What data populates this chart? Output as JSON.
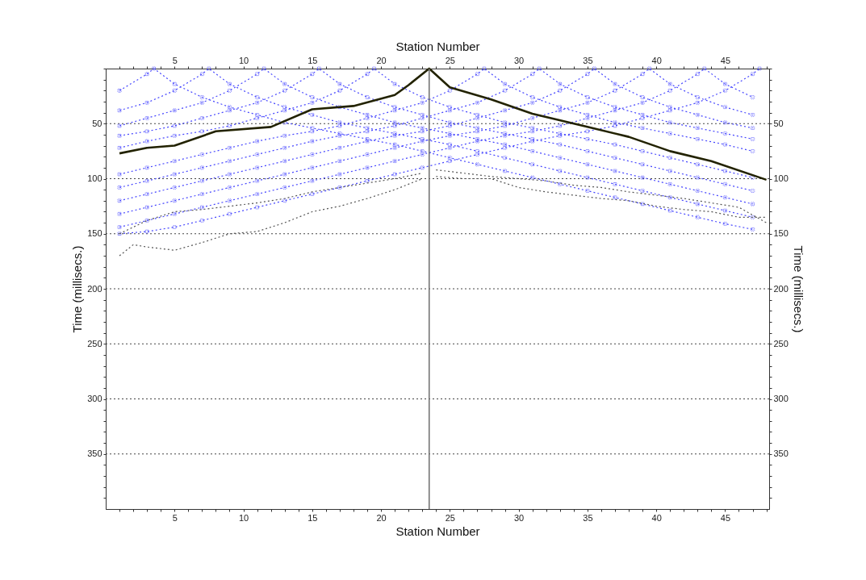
{
  "chart_data": {
    "type": "line",
    "xlabel": "Station Number",
    "x2label": "Station Number",
    "ylabel": "Time (millisecs.)",
    "y2label": "Time (millisecs.)",
    "xlim": [
      0,
      48.2
    ],
    "x2lim": [
      0,
      48.2
    ],
    "ylim": [
      400,
      0
    ],
    "y2lim": [
      400,
      0
    ],
    "xticks": [
      {
        "value": 1,
        "label": null
      },
      {
        "value": 2,
        "label": null
      },
      {
        "value": 3,
        "label": null
      },
      {
        "value": 4,
        "label": null
      },
      5,
      {
        "value": 6,
        "label": null
      },
      {
        "value": 7,
        "label": null
      },
      {
        "value": 8,
        "label": null
      },
      {
        "value": 9,
        "label": null
      },
      10,
      {
        "value": 11,
        "label": null
      },
      {
        "value": 12,
        "label": null
      },
      {
        "value": 13,
        "label": null
      },
      {
        "value": 14,
        "label": null
      },
      15,
      {
        "value": 16,
        "label": null
      },
      {
        "value": 17,
        "label": null
      },
      {
        "value": 18,
        "label": null
      },
      {
        "value": 19,
        "label": null
      },
      20,
      {
        "value": 21,
        "label": null
      },
      {
        "value": 22,
        "label": null
      },
      {
        "value": 23,
        "label": null
      },
      {
        "value": 24,
        "label": null
      },
      25,
      {
        "value": 26,
        "label": null
      },
      {
        "value": 27,
        "label": null
      },
      {
        "value": 28,
        "label": null
      },
      {
        "value": 29,
        "label": null
      },
      30,
      {
        "value": 31,
        "label": null
      },
      {
        "value": 32,
        "label": null
      },
      {
        "value": 33,
        "label": null
      },
      {
        "value": 34,
        "label": null
      },
      35,
      {
        "value": 36,
        "label": null
      },
      {
        "value": 37,
        "label": null
      },
      {
        "value": 38,
        "label": null
      },
      {
        "value": 39,
        "label": null
      },
      40,
      {
        "value": 41,
        "label": null
      },
      {
        "value": 42,
        "label": null
      },
      {
        "value": 43,
        "label": null
      },
      {
        "value": 44,
        "label": null
      },
      45,
      {
        "value": 46,
        "label": null
      },
      {
        "value": 47,
        "label": null
      },
      {
        "value": 48,
        "label": null
      }
    ],
    "x2ticks": [
      {
        "value": 1,
        "label": null
      },
      {
        "value": 2,
        "label": null
      },
      {
        "value": 3,
        "label": null
      },
      {
        "value": 4,
        "label": null
      },
      5,
      {
        "value": 6,
        "label": null
      },
      {
        "value": 7,
        "label": null
      },
      {
        "value": 8,
        "label": null
      },
      {
        "value": 9,
        "label": null
      },
      10,
      {
        "value": 11,
        "label": null
      },
      {
        "value": 12,
        "label": null
      },
      {
        "value": 13,
        "label": null
      },
      {
        "value": 14,
        "label": null
      },
      15,
      {
        "value": 16,
        "label": null
      },
      {
        "value": 17,
        "label": null
      },
      {
        "value": 18,
        "label": null
      },
      {
        "value": 19,
        "label": null
      },
      20,
      {
        "value": 21,
        "label": null
      },
      {
        "value": 22,
        "label": null
      },
      {
        "value": 23,
        "label": null
      },
      {
        "value": 24,
        "label": null
      },
      25,
      {
        "value": 26,
        "label": null
      },
      {
        "value": 27,
        "label": null
      },
      {
        "value": 28,
        "label": null
      },
      {
        "value": 29,
        "label": null
      },
      30,
      {
        "value": 31,
        "label": null
      },
      {
        "value": 32,
        "label": null
      },
      {
        "value": 33,
        "label": null
      },
      {
        "value": 34,
        "label": null
      },
      35,
      {
        "value": 36,
        "label": null
      },
      {
        "value": 37,
        "label": null
      },
      {
        "value": 38,
        "label": null
      },
      {
        "value": 39,
        "label": null
      },
      40,
      {
        "value": 41,
        "label": null
      },
      {
        "value": 42,
        "label": null
      },
      {
        "value": 43,
        "label": null
      },
      {
        "value": 44,
        "label": null
      },
      45,
      {
        "value": 46,
        "label": null
      },
      {
        "value": 47,
        "label": null
      },
      {
        "value": 48,
        "label": null
      }
    ],
    "yticks": [
      {
        "value": 0,
        "label": null
      },
      {
        "value": 10,
        "label": null
      },
      {
        "value": 20,
        "label": null
      },
      {
        "value": 30,
        "label": null
      },
      {
        "value": 40,
        "label": null
      },
      50,
      {
        "value": 60,
        "label": null
      },
      {
        "value": 70,
        "label": null
      },
      {
        "value": 80,
        "label": null
      },
      {
        "value": 90,
        "label": null
      },
      100,
      {
        "value": 110,
        "label": null
      },
      {
        "value": 120,
        "label": null
      },
      {
        "value": 130,
        "label": null
      },
      {
        "value": 140,
        "label": null
      },
      150,
      {
        "value": 160,
        "label": null
      },
      {
        "value": 170,
        "label": null
      },
      {
        "value": 180,
        "label": null
      },
      {
        "value": 190,
        "label": null
      },
      200,
      {
        "value": 210,
        "label": null
      },
      {
        "value": 220,
        "label": null
      },
      {
        "value": 230,
        "label": null
      },
      {
        "value": 240,
        "label": null
      },
      250,
      {
        "value": 260,
        "label": null
      },
      {
        "value": 270,
        "label": null
      },
      {
        "value": 280,
        "label": null
      },
      {
        "value": 290,
        "label": null
      },
      300,
      {
        "value": 310,
        "label": null
      },
      {
        "value": 320,
        "label": null
      },
      {
        "value": 330,
        "label": null
      },
      {
        "value": 340,
        "label": null
      },
      350,
      {
        "value": 360,
        "label": null
      },
      {
        "value": 370,
        "label": null
      },
      {
        "value": 380,
        "label": null
      },
      {
        "value": 390,
        "label": null
      }
    ],
    "y2ticks": [
      {
        "value": 0,
        "label": null
      },
      {
        "value": 10,
        "label": null
      },
      {
        "value": 20,
        "label": null
      },
      {
        "value": 30,
        "label": null
      },
      {
        "value": 40,
        "label": null
      },
      50,
      {
        "value": 60,
        "label": null
      },
      {
        "value": 70,
        "label": null
      },
      {
        "value": 80,
        "label": null
      },
      {
        "value": 90,
        "label": null
      },
      100,
      {
        "value": 110,
        "label": null
      },
      {
        "value": 120,
        "label": null
      },
      {
        "value": 130,
        "label": null
      },
      {
        "value": 140,
        "label": null
      },
      150,
      {
        "value": 160,
        "label": null
      },
      {
        "value": 170,
        "label": null
      },
      {
        "value": 180,
        "label": null
      },
      {
        "value": 190,
        "label": null
      },
      200,
      {
        "value": 210,
        "label": null
      },
      {
        "value": 220,
        "label": null
      },
      {
        "value": 230,
        "label": null
      },
      {
        "value": 240,
        "label": null
      },
      250,
      {
        "value": 260,
        "label": null
      },
      {
        "value": 270,
        "label": null
      },
      {
        "value": 280,
        "label": null
      },
      {
        "value": 290,
        "label": null
      },
      300,
      {
        "value": 310,
        "label": null
      },
      {
        "value": 320,
        "label": null
      },
      {
        "value": 330,
        "label": null
      },
      {
        "value": 340,
        "label": null
      },
      350,
      {
        "value": 360,
        "label": null
      },
      {
        "value": 370,
        "label": null
      },
      {
        "value": 380,
        "label": null
      },
      {
        "value": 390,
        "label": null
      }
    ],
    "grid": "y",
    "ref_lines": [
      {
        "axis": "x",
        "value": 23.5,
        "color": "#6e6e6e",
        "line_style": "solid"
      }
    ],
    "series": [
      {
        "color": "#4646ff",
        "marker": "cross",
        "line_style": "dotted",
        "x": [
          1,
          3,
          3.5,
          5,
          7,
          9,
          11,
          13,
          15,
          17,
          19,
          21,
          23,
          25,
          27,
          29,
          31,
          33,
          35,
          37,
          39,
          41,
          43,
          45,
          47
        ],
        "values": [
          20,
          5,
          0,
          14,
          26,
          35,
          42,
          49,
          54,
          59,
          64,
          69,
          75,
          81,
          87,
          93,
          99,
          105,
          111,
          117,
          123,
          129,
          135,
          141,
          146
        ]
      },
      {
        "color": "#4646ff",
        "marker": "cross",
        "line_style": "dotted",
        "x": [
          1,
          3,
          5,
          7,
          7.5,
          9,
          11,
          13,
          15,
          17,
          19,
          21,
          23,
          25,
          27,
          29,
          31,
          33,
          35,
          37,
          39,
          41,
          43,
          45,
          47
        ],
        "values": [
          38,
          31,
          20,
          5,
          0,
          14,
          26,
          35,
          42,
          49,
          54,
          59,
          64,
          69,
          75,
          81,
          87,
          93,
          99,
          105,
          111,
          117,
          123,
          129,
          135
        ]
      },
      {
        "color": "#4646ff",
        "marker": "cross",
        "line_style": "dotted",
        "x": [
          1,
          3,
          5,
          7,
          9,
          11,
          11.5,
          13,
          15,
          17,
          19,
          21,
          23,
          25,
          27,
          29,
          31,
          33,
          35,
          37,
          39,
          41,
          43,
          45,
          47
        ],
        "values": [
          52,
          45,
          38,
          31,
          20,
          5,
          0,
          14,
          26,
          35,
          42,
          49,
          54,
          59,
          64,
          69,
          75,
          81,
          87,
          93,
          99,
          105,
          111,
          117,
          123
        ]
      },
      {
        "color": "#4646ff",
        "marker": "cross",
        "line_style": "dotted",
        "x": [
          1,
          3,
          5,
          7,
          9,
          11,
          13,
          15,
          15.5,
          17,
          19,
          21,
          23,
          25,
          27,
          29,
          31,
          33,
          35,
          37,
          39,
          41,
          43,
          45,
          47
        ],
        "values": [
          61,
          57,
          52,
          45,
          38,
          31,
          20,
          5,
          0,
          14,
          26,
          35,
          42,
          49,
          54,
          59,
          64,
          69,
          75,
          81,
          87,
          93,
          99,
          105,
          111
        ]
      },
      {
        "color": "#4646ff",
        "marker": "cross",
        "line_style": "dotted",
        "x": [
          1,
          3,
          5,
          7,
          9,
          11,
          13,
          15,
          17,
          19,
          19.5,
          21,
          23,
          25,
          27,
          29,
          31,
          33,
          35,
          37,
          39,
          41,
          43,
          45,
          47
        ],
        "values": [
          72,
          66,
          61,
          57,
          52,
          45,
          38,
          31,
          20,
          5,
          0,
          14,
          26,
          35,
          42,
          49,
          54,
          59,
          64,
          69,
          75,
          81,
          87,
          93,
          99
        ]
      },
      {
        "color": "#4646ff",
        "marker": "cross",
        "line_style": "dotted",
        "x": [
          1,
          3,
          5,
          7,
          9,
          11,
          13,
          15,
          17,
          19,
          21,
          23,
          25,
          27,
          27.5,
          29,
          31,
          33,
          35,
          37,
          39,
          41,
          43,
          45,
          47
        ],
        "values": [
          96,
          90,
          84,
          78,
          72,
          66,
          61,
          57,
          52,
          45,
          38,
          31,
          20,
          5,
          0,
          14,
          26,
          35,
          42,
          49,
          54,
          59,
          64,
          69,
          75
        ]
      },
      {
        "color": "#4646ff",
        "marker": "cross",
        "line_style": "dotted",
        "x": [
          1,
          3,
          5,
          7,
          9,
          11,
          13,
          15,
          17,
          19,
          21,
          23,
          25,
          27,
          29,
          31,
          31.5,
          33,
          35,
          37,
          39,
          41,
          43,
          45,
          47
        ],
        "values": [
          108,
          102,
          96,
          90,
          84,
          78,
          72,
          66,
          61,
          57,
          52,
          45,
          38,
          31,
          20,
          5,
          0,
          14,
          26,
          35,
          42,
          49,
          54,
          59,
          64
        ]
      },
      {
        "color": "#4646ff",
        "marker": "cross",
        "line_style": "dotted",
        "x": [
          1,
          3,
          5,
          7,
          9,
          11,
          13,
          15,
          17,
          19,
          21,
          23,
          25,
          27,
          29,
          31,
          33,
          35,
          35.5,
          37,
          39,
          41,
          43,
          45,
          47
        ],
        "values": [
          120,
          114,
          108,
          102,
          96,
          90,
          84,
          78,
          72,
          66,
          61,
          57,
          52,
          45,
          38,
          31,
          20,
          5,
          0,
          14,
          26,
          35,
          42,
          49,
          54
        ]
      },
      {
        "color": "#4646ff",
        "marker": "cross",
        "line_style": "dotted",
        "x": [
          1,
          3,
          5,
          7,
          9,
          11,
          13,
          15,
          17,
          19,
          21,
          23,
          25,
          27,
          29,
          31,
          33,
          35,
          37,
          39,
          39.5,
          41,
          43,
          45,
          47
        ],
        "values": [
          132,
          126,
          120,
          114,
          108,
          102,
          96,
          90,
          84,
          78,
          72,
          66,
          61,
          57,
          52,
          45,
          38,
          31,
          20,
          5,
          0,
          14,
          26,
          35,
          42
        ]
      },
      {
        "color": "#4646ff",
        "marker": "cross",
        "line_style": "dotted",
        "x": [
          1,
          3,
          5,
          7,
          9,
          11,
          13,
          15,
          17,
          19,
          21,
          23,
          25,
          27,
          29,
          31,
          33,
          35,
          37,
          39,
          41,
          43,
          43.5,
          45,
          47
        ],
        "values": [
          144,
          138,
          132,
          126,
          120,
          114,
          108,
          102,
          96,
          90,
          84,
          78,
          72,
          66,
          61,
          57,
          52,
          45,
          38,
          31,
          20,
          5,
          0,
          14,
          26
        ]
      },
      {
        "color": "#4646ff",
        "marker": "cross",
        "line_style": "dotted",
        "x": [
          1,
          3,
          5,
          7,
          9,
          11,
          13,
          15,
          17,
          19,
          21,
          23,
          25,
          27,
          29,
          31,
          33,
          35,
          37,
          39,
          41,
          43,
          45,
          47,
          47.5
        ],
        "values": [
          150,
          148,
          144,
          138,
          132,
          126,
          120,
          114,
          108,
          102,
          96,
          90,
          84,
          78,
          72,
          66,
          61,
          57,
          52,
          45,
          38,
          31,
          20,
          5,
          0
        ]
      },
      {
        "color": "#555555",
        "marker": "none",
        "line_style": "dotted",
        "x": [
          1,
          2,
          3,
          5,
          7,
          9,
          11,
          13,
          15,
          17,
          19,
          21,
          23
        ],
        "values": [
          170,
          160,
          162,
          165,
          158,
          150,
          148,
          140,
          130,
          125,
          118,
          110,
          100
        ]
      },
      {
        "color": "#555555",
        "marker": "none",
        "line_style": "dotted",
        "x": [
          1,
          3,
          5,
          7,
          9,
          11,
          13,
          15,
          17,
          19,
          21,
          23
        ],
        "values": [
          150,
          138,
          130,
          128,
          125,
          122,
          118,
          112,
          108,
          104,
          100,
          95
        ]
      },
      {
        "color": "#555555",
        "marker": "none",
        "line_style": "dotted",
        "x": [
          24,
          26,
          28,
          30,
          32,
          34,
          36,
          38,
          40,
          42,
          44,
          46,
          48
        ],
        "values": [
          98,
          100,
          100,
          108,
          112,
          115,
          118,
          120,
          125,
          128,
          130,
          135,
          135
        ]
      },
      {
        "color": "#555555",
        "marker": "none",
        "line_style": "dotted",
        "x": [
          24,
          26,
          28,
          30,
          32,
          34,
          36,
          38,
          40,
          42,
          44,
          46,
          48
        ],
        "values": [
          92,
          95,
          98,
          100,
          102,
          106,
          108,
          112,
          115,
          118,
          122,
          126,
          140
        ]
      },
      {
        "color": "#222200",
        "marker": "none",
        "line_style": "solid",
        "x": [
          1,
          3,
          5,
          8,
          12,
          15,
          18,
          21,
          22,
          23.5,
          25,
          28,
          31,
          35,
          38,
          41,
          44,
          48
        ],
        "values": [
          77,
          72,
          70,
          57,
          53,
          37,
          34,
          24,
          15,
          0,
          17,
          28,
          41,
          53,
          62,
          75,
          84,
          101
        ]
      }
    ]
  }
}
